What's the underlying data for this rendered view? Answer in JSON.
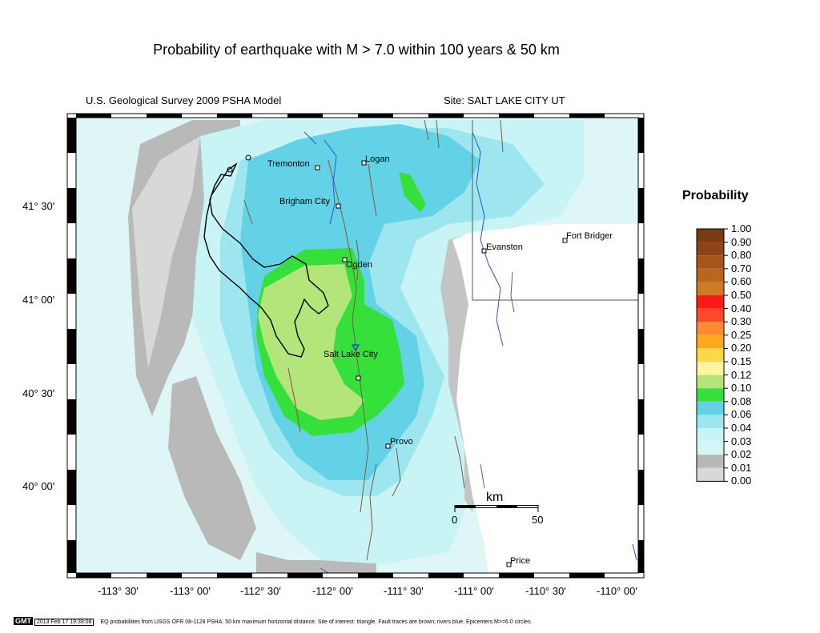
{
  "title": "Probability of earthquake with M > 7.0 within 100 years & 50 km",
  "model_label": "U.S. Geological Survey 2009 PSHA Model",
  "site_label": "Site: SALT  LAKE CITY UT",
  "lat_labels": [
    "41° 30'",
    "41° 00'",
    "40° 30'",
    "40° 00'"
  ],
  "lon_labels": [
    "-113° 30'",
    "-113° 00'",
    "-112° 30'",
    "-112° 00'",
    "-111° 30'",
    "-111° 00'",
    "-110° 30'",
    "-110° 00'"
  ],
  "cities": [
    "Tremonton",
    "Logan",
    "Brigham City",
    "Ogden",
    "Salt Lake City",
    "Provo",
    "Evanston",
    "Fort Bridger",
    "Price"
  ],
  "scale_bar": {
    "unit": "km",
    "start": "0",
    "end": "50"
  },
  "legend": {
    "title": "Probability",
    "levels": [
      "1.00",
      "0.90",
      "0.80",
      "0.70",
      "0.60",
      "0.50",
      "0.40",
      "0.30",
      "0.25",
      "0.20",
      "0.15",
      "0.12",
      "0.10",
      "0.08",
      "0.06",
      "0.04",
      "0.03",
      "0.02",
      "0.01",
      "0.00"
    ],
    "colors": [
      "#7a3a14",
      "#8e4416",
      "#a6541a",
      "#b9641f",
      "#cf7a24",
      "#ff1a1a",
      "#ff4a2a",
      "#ff8a30",
      "#ffa820",
      "#ffd84a",
      "#fff4a0",
      "#b4e57a",
      "#36e03a",
      "#64d2e6",
      "#9de6f0",
      "#c8f4f6",
      "#d6f7f7",
      "#b8b8b8",
      "#d8d8d8",
      "#ffffff"
    ]
  },
  "footer": {
    "gmt": "GMT",
    "timestamp": "2013 Feb 17 19:39:08",
    "caption": "EQ probabilities from USGS OFR 08-1128 PSHA. 50 km maximum horizontal distance. Site of interest: triangle. Fault traces are brown; rivers blue. Epicenters M>=6.0 circles."
  }
}
